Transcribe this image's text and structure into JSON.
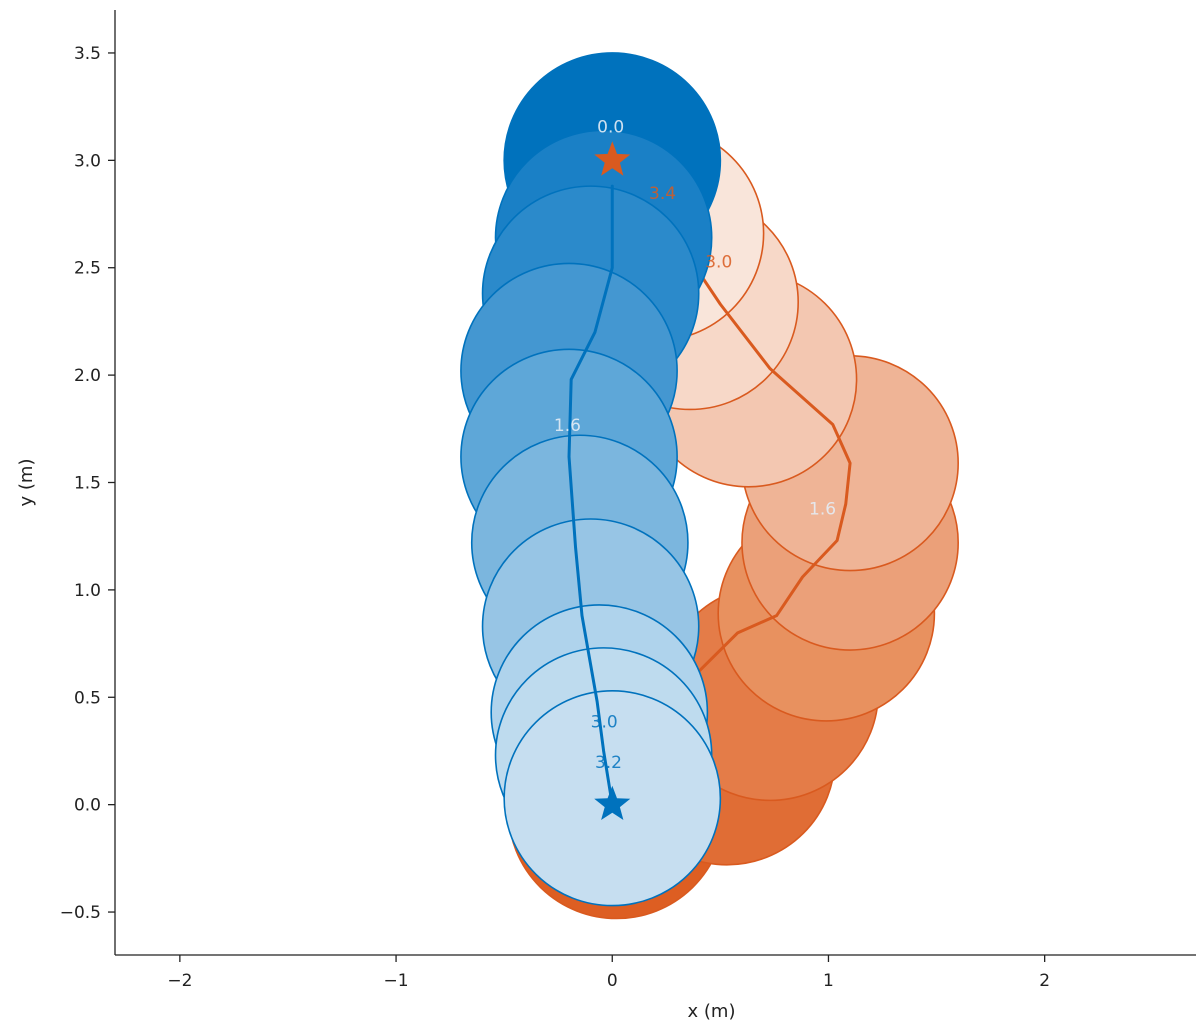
{
  "chart_data": {
    "type": "scatter",
    "xlabel": "x (m)",
    "ylabel": "y (m)",
    "xlim": [
      -2.3,
      2.7
    ],
    "ylim": [
      -0.7,
      3.7
    ],
    "xticks": [
      -2,
      -1,
      0,
      1,
      2
    ],
    "xtick_labels": [
      "−2",
      "−1",
      "0",
      "1",
      "2"
    ],
    "yticks": [
      -0.5,
      0.0,
      0.5,
      1.0,
      1.5,
      2.0,
      2.5,
      3.0,
      3.5
    ],
    "ytick_labels": [
      "−0.5",
      "0.0",
      "0.5",
      "1.0",
      "1.5",
      "2.0",
      "2.5",
      "3.0",
      "3.5"
    ],
    "grid": false,
    "circle_radius": 0.5,
    "series": [
      {
        "color": "#d95a1f",
        "circle_colors": [
          "#dd5e22",
          "#e06d35",
          "#e47c48",
          "#e8915f",
          "#eba079",
          "#efb496",
          "#f3c7b1",
          "#f7d8c8",
          "#f9e5da"
        ],
        "circles": [
          {
            "x": 0.02,
            "y": -0.03
          },
          {
            "x": 0.53,
            "y": 0.22
          },
          {
            "x": 0.73,
            "y": 0.52
          },
          {
            "x": 0.99,
            "y": 0.89
          },
          {
            "x": 1.1,
            "y": 1.22
          },
          {
            "x": 1.1,
            "y": 1.59
          },
          {
            "x": 0.63,
            "y": 1.98
          },
          {
            "x": 0.36,
            "y": 2.34
          },
          {
            "x": 0.2,
            "y": 2.66
          }
        ],
        "path": [
          {
            "x": 0.02,
            "y": 0.07
          },
          {
            "x": 0.09,
            "y": 0.18
          },
          {
            "x": 0.2,
            "y": 0.33
          },
          {
            "x": 0.3,
            "y": 0.52
          },
          {
            "x": 0.58,
            "y": 0.8
          },
          {
            "x": 0.76,
            "y": 0.88
          },
          {
            "x": 0.88,
            "y": 1.06
          },
          {
            "x": 1.04,
            "y": 1.23
          },
          {
            "x": 1.08,
            "y": 1.4
          },
          {
            "x": 1.1,
            "y": 1.59
          },
          {
            "x": 1.02,
            "y": 1.77
          },
          {
            "x": 0.73,
            "y": 2.03
          },
          {
            "x": 0.5,
            "y": 2.33
          },
          {
            "x": 0.36,
            "y": 2.54
          },
          {
            "x": 0.24,
            "y": 2.69
          }
        ],
        "star": {
          "x": 0.0,
          "y": 3.0
        },
        "time_labels": [
          {
            "text": "3.4",
            "x": 0.17,
            "y": 2.82
          },
          {
            "text": "3.0",
            "x": 0.43,
            "y": 2.5
          },
          {
            "text": "1.6",
            "x": 0.91,
            "y": 1.35
          }
        ]
      },
      {
        "color": "#0072bd",
        "circle_colors": [
          "#0072bd",
          "#1a80c6",
          "#2b8acb",
          "#4497d1",
          "#5ea7d8",
          "#7bb6de",
          "#97c5e5",
          "#afd3ec",
          "#bedbee",
          "#c6def0"
        ],
        "circles": [
          {
            "x": 0.0,
            "y": 3.0
          },
          {
            "x": -0.04,
            "y": 2.64
          },
          {
            "x": -0.1,
            "y": 2.38
          },
          {
            "x": -0.2,
            "y": 2.02
          },
          {
            "x": -0.2,
            "y": 1.62
          },
          {
            "x": -0.15,
            "y": 1.22
          },
          {
            "x": -0.1,
            "y": 0.83
          },
          {
            "x": -0.06,
            "y": 0.43
          },
          {
            "x": -0.04,
            "y": 0.23
          },
          {
            "x": 0.0,
            "y": 0.03
          }
        ],
        "path": [
          {
            "x": 0.0,
            "y": 2.88
          },
          {
            "x": 0.0,
            "y": 2.5
          },
          {
            "x": -0.08,
            "y": 2.2
          },
          {
            "x": -0.19,
            "y": 1.98
          },
          {
            "x": -0.2,
            "y": 1.62
          },
          {
            "x": -0.17,
            "y": 1.2
          },
          {
            "x": -0.14,
            "y": 0.88
          },
          {
            "x": -0.07,
            "y": 0.48
          },
          {
            "x": -0.04,
            "y": 0.25
          },
          {
            "x": 0.0,
            "y": 0.0
          }
        ],
        "star": {
          "x": 0.0,
          "y": 0.0
        },
        "time_labels": [
          {
            "text": "0.0",
            "x": -0.07,
            "y": 3.13
          },
          {
            "text": "1.6",
            "x": -0.27,
            "y": 1.74
          },
          {
            "text": "3.0",
            "x": -0.1,
            "y": 0.36
          },
          {
            "text": "3.2",
            "x": -0.08,
            "y": 0.17
          }
        ]
      }
    ]
  }
}
